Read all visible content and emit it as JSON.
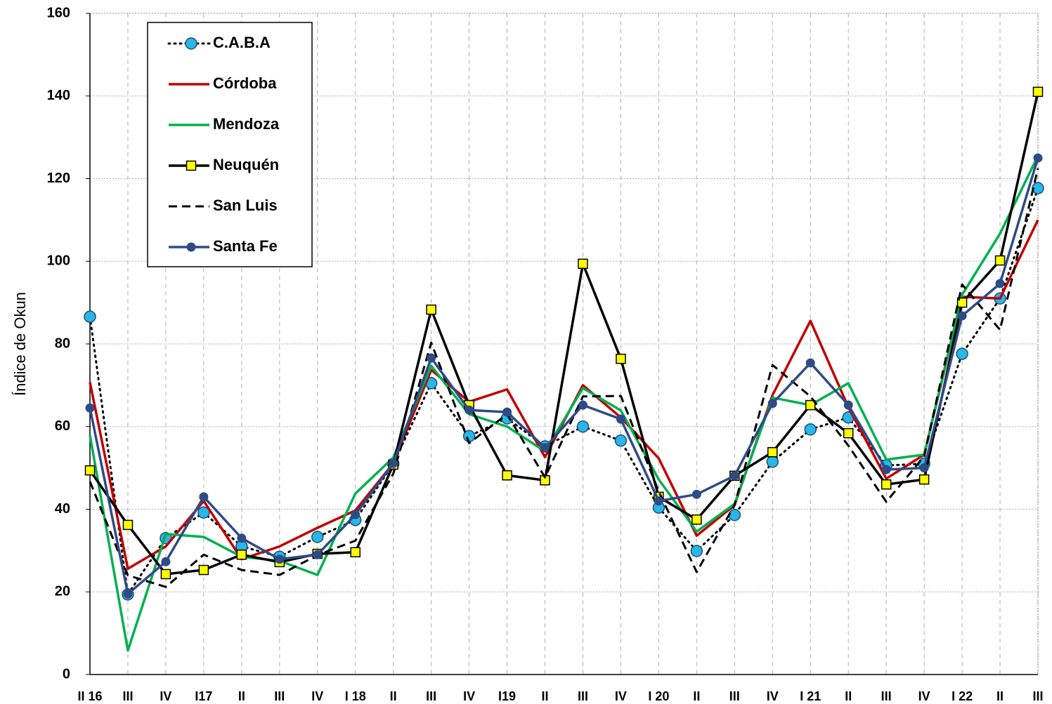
{
  "chart_data": {
    "type": "line",
    "y_label": "Índice de Okun",
    "categories": [
      "II 16",
      "III",
      "IV",
      "I17",
      "II",
      "III",
      "IV",
      "I 18",
      "II",
      "III",
      "IV",
      "I19",
      "II",
      "III",
      "IV",
      "I 20",
      "II",
      "III",
      "IV",
      "I 21",
      "II",
      "III",
      "IV",
      "I 22",
      "II",
      "III"
    ],
    "ylim": [
      0,
      160
    ],
    "yticks": [
      0,
      20,
      40,
      60,
      80,
      100,
      120,
      140,
      160
    ],
    "grid": true,
    "legend": "upper left",
    "series": [
      {
        "name": "C.A.B.A",
        "color": "#000000",
        "line_style": "dotted",
        "marker": "circle",
        "marker_color": "#29b6e8",
        "values": [
          86.6,
          19.4,
          33,
          39.2,
          31,
          28.5,
          33.3,
          37.4,
          51,
          70.5,
          57.7,
          62,
          55.2,
          60,
          56.6,
          40.4,
          29.9,
          38.6,
          51.5,
          59.3,
          62.2,
          50.6,
          51,
          77.6,
          91,
          117.7
        ]
      },
      {
        "name": "Córdoba",
        "color": "#c00000",
        "line_style": "solid",
        "marker": "none",
        "values": [
          70.7,
          25.6,
          31,
          42,
          27.9,
          31,
          35.5,
          39.7,
          51.1,
          73.7,
          66,
          69,
          52.6,
          70,
          62.2,
          52.3,
          33.6,
          41,
          67.6,
          85.6,
          64.7,
          47.4,
          53.2,
          91.4,
          91,
          110
        ]
      },
      {
        "name": "Mendoza",
        "color": "#00b050",
        "line_style": "solid",
        "marker": "none",
        "values": [
          57.9,
          5.8,
          34,
          33.3,
          28.5,
          27.5,
          24.1,
          43.8,
          52.5,
          74.7,
          63,
          60,
          54,
          69.3,
          63.9,
          47.2,
          34.6,
          41.3,
          67,
          65.2,
          70.5,
          52,
          53.2,
          91.9,
          106.7,
          125.5
        ]
      },
      {
        "name": "Neuquén",
        "color": "#000000",
        "line_style": "solid",
        "marker": "square",
        "marker_color": "#ffff00",
        "values": [
          49.4,
          36.2,
          24.3,
          25.3,
          29,
          27.2,
          29.2,
          29.6,
          50.8,
          88.3,
          65.2,
          48.2,
          47,
          99.4,
          76.4,
          43,
          37.5,
          48.1,
          53.8,
          65.2,
          58.4,
          46,
          47.2,
          90,
          100.2,
          141
        ]
      },
      {
        "name": "San Luis",
        "color": "#000000",
        "line_style": "dashed",
        "marker": "none",
        "values": [
          46.7,
          24,
          21.2,
          29,
          25.3,
          24.1,
          28.9,
          32.4,
          48.6,
          80.3,
          56,
          63,
          47.7,
          67.3,
          67.4,
          44.3,
          24.8,
          41,
          74.9,
          67.3,
          55.4,
          41.8,
          52.8,
          94.4,
          83.4,
          122.5
        ]
      },
      {
        "name": "Santa Fe",
        "color": "#2f4b85",
        "line_style": "solid",
        "marker": "dot",
        "marker_color": "#2f4b85",
        "values": [
          64.5,
          19.5,
          27.3,
          43,
          33,
          27.9,
          29,
          38.7,
          51.1,
          76.6,
          64,
          63.5,
          54.9,
          65.2,
          61.8,
          42,
          43.6,
          48.1,
          65.6,
          75.4,
          65.2,
          49.6,
          50,
          86.8,
          94.6,
          125
        ]
      }
    ]
  }
}
